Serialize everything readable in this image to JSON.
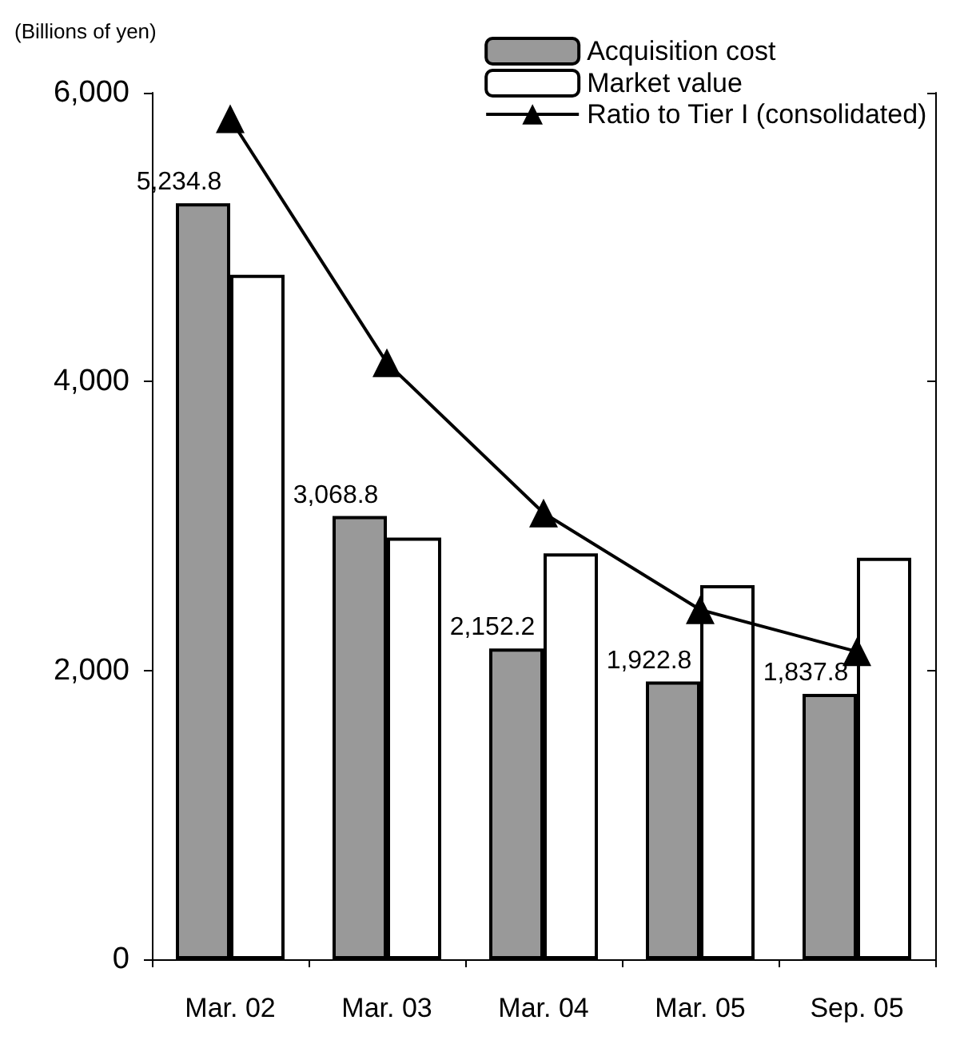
{
  "chart_data": {
    "type": "bar",
    "ylabel": "(Billions of yen)",
    "categories": [
      "Mar. 02",
      "Mar. 03",
      "Mar. 04",
      "Mar. 05",
      "Sep. 05"
    ],
    "series": [
      {
        "name": "Acquisition cost",
        "color": "#999999",
        "values": [
          5234.8,
          3068.8,
          2152.2,
          1922.8,
          1837.8
        ],
        "value_labels": [
          "5,234.8",
          "3,068.8",
          "2,152.2",
          "1,922.8",
          "1,837.8"
        ]
      },
      {
        "name": "Market value",
        "color": "#ffffff",
        "values": [
          4740,
          2920,
          2810,
          2590,
          2780
        ]
      },
      {
        "name": "Ratio to Tier I (consolidated)",
        "type": "line",
        "color": "#000000",
        "marker": "triangle",
        "values": [
          5820,
          4130,
          3090,
          2420,
          2130
        ]
      }
    ],
    "ylim": [
      0,
      6000
    ],
    "yticks": [
      {
        "value": 0,
        "label": "0"
      },
      {
        "value": 2000,
        "label": "2,000"
      },
      {
        "value": 4000,
        "label": "4,000"
      },
      {
        "value": 6000,
        "label": "6,000"
      }
    ],
    "grid": false,
    "legend": "top right"
  }
}
